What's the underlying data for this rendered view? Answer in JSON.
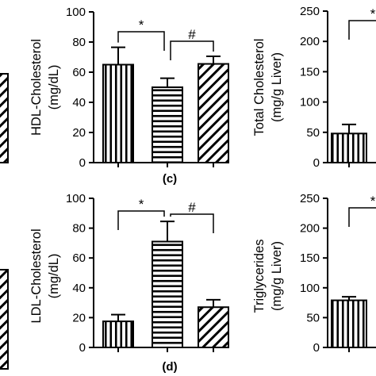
{
  "chart_data": [
    {
      "type": "bar",
      "panel": "(c)",
      "ylabel": "HDL-Cholesterol",
      "yunit": "(mg/dL)",
      "ylim": [
        0,
        100
      ],
      "yticks": [
        "0",
        "20",
        "40",
        "60",
        "80",
        "100"
      ],
      "values": [
        65,
        50,
        65.5
      ],
      "errors": [
        11.5,
        6,
        5
      ],
      "patterns": [
        "vertical",
        "horizontal",
        "diagonal"
      ],
      "annotations": [
        {
          "text": "*",
          "between": [
            0,
            1
          ]
        },
        {
          "text": "#",
          "between": [
            1,
            2
          ]
        }
      ]
    },
    {
      "type": "bar",
      "panel": "(d)",
      "ylabel": "LDL-Cholesterol",
      "yunit": "(mg/dL)",
      "ylim": [
        0,
        100
      ],
      "yticks": [
        "0",
        "20",
        "40",
        "60",
        "80",
        "100"
      ],
      "values": [
        17.5,
        71,
        27
      ],
      "errors": [
        4.5,
        13.5,
        5
      ],
      "patterns": [
        "vertical",
        "horizontal",
        "diagonal"
      ],
      "annotations": [
        {
          "text": "*",
          "between": [
            0,
            1
          ]
        },
        {
          "text": "#",
          "between": [
            1,
            2
          ]
        }
      ]
    },
    {
      "type": "bar",
      "ylabel": "Total Cholesterol",
      "yunit": "(mg/g Liver)",
      "ylim": [
        0,
        250
      ],
      "yticks": [
        "0",
        "50",
        "100",
        "150",
        "200",
        "250"
      ],
      "values": [
        48
      ],
      "errors": [
        15
      ],
      "patterns": [
        "vertical"
      ],
      "annotations": [
        {
          "text": "*",
          "between": [
            0,
            1
          ]
        }
      ]
    },
    {
      "type": "bar",
      "ylabel": "Triglycerides",
      "yunit": "(mg/g Liver)",
      "ylim": [
        0,
        250
      ],
      "yticks": [
        "0",
        "50",
        "100",
        "150",
        "200",
        "250"
      ],
      "values": [
        79
      ],
      "errors": [
        6
      ],
      "patterns": [
        "vertical"
      ],
      "annotations": [
        {
          "text": "*",
          "between": [
            0,
            1
          ]
        }
      ]
    }
  ],
  "partial_left_bars": [
    {
      "pattern": "diagonal"
    },
    {
      "pattern": "diagonal"
    }
  ]
}
